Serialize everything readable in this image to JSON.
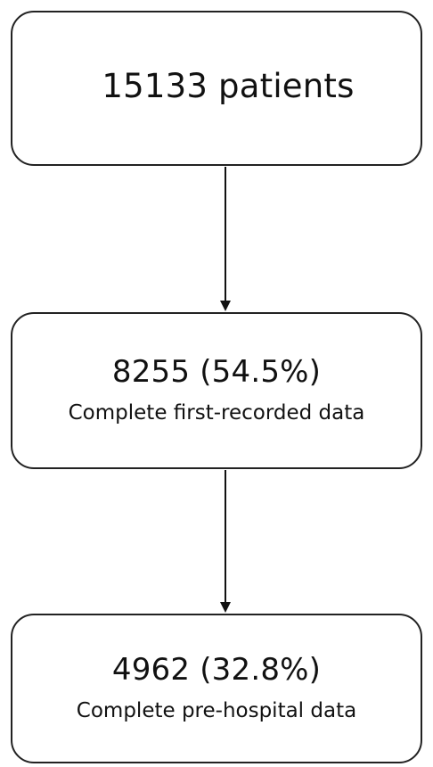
{
  "flowchart": {
    "nodes": [
      {
        "count": "15133 patients",
        "label": ""
      },
      {
        "count": "8255 (54.5%)",
        "label": "Complete first-recorded data"
      },
      {
        "count": "4962 (32.8%)",
        "label": "Complete pre-hospital data"
      }
    ]
  }
}
